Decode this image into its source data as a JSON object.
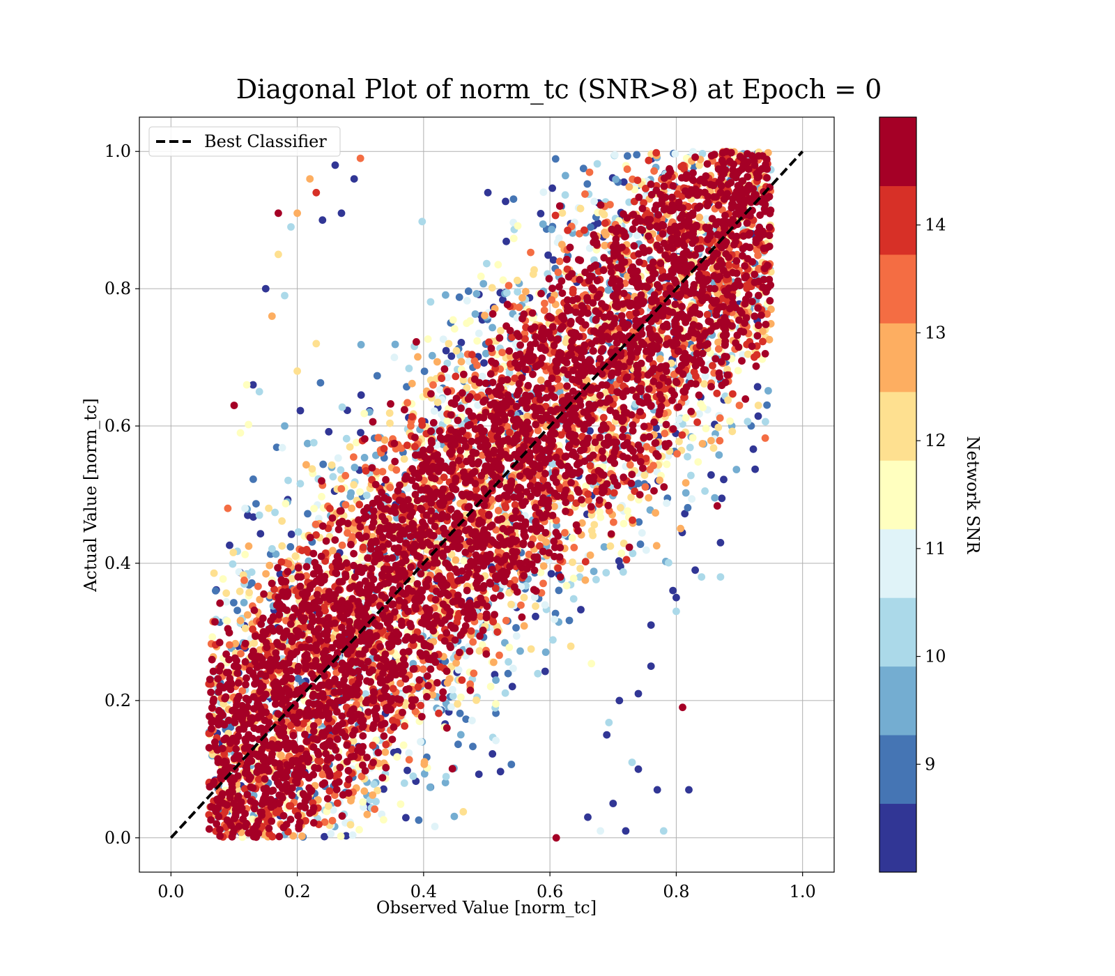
{
  "chart_data": {
    "type": "scatter",
    "title": "Diagonal Plot of norm_tc (SNR>8) at Epoch = 0",
    "xlabel": "Observed Value [norm_tc]",
    "ylabel": "Actual Value [norm_tc]",
    "xlim": [
      -0.05,
      1.05
    ],
    "ylim": [
      -0.05,
      1.05
    ],
    "xticks": [
      0.0,
      0.2,
      0.4,
      0.6,
      0.8,
      1.0
    ],
    "yticks": [
      0.0,
      0.2,
      0.4,
      0.6,
      0.8,
      1.0
    ],
    "xtick_labels": [
      "0.0",
      "0.2",
      "0.4",
      "0.6",
      "0.8",
      "1.0"
    ],
    "ytick_labels": [
      "0.0",
      "0.2",
      "0.4",
      "0.6",
      "0.8",
      "1.0"
    ],
    "grid": true,
    "legend": {
      "position": "upper-left",
      "entries": [
        {
          "label": "Best Classifier",
          "style": "dashed",
          "color": "#000000"
        }
      ]
    },
    "reference_line": {
      "label": "Best Classifier",
      "x": [
        0.0,
        1.0
      ],
      "y": [
        0.0,
        1.0
      ]
    },
    "colorbar": {
      "label": "Network SNR",
      "range": [
        8.0,
        15.0
      ],
      "ticks": [
        9,
        10,
        11,
        12,
        13,
        14
      ],
      "tick_labels": [
        "9",
        "10",
        "11",
        "12",
        "13",
        "14"
      ],
      "colors": [
        "#313695",
        "#4575b4",
        "#74add1",
        "#abd9e9",
        "#e0f3f8",
        "#ffffbf",
        "#fee090",
        "#fdae61",
        "#f46d43",
        "#d73027",
        "#a50026"
      ]
    },
    "scatter_description": {
      "point_color_by": "Network SNR",
      "band_half_width_at_high_snr": 0.22,
      "band_half_width_at_low_snr": 0.45,
      "x_range": [
        0.06,
        0.95
      ],
      "y_range": [
        0.0,
        1.0
      ]
    },
    "points": [
      [
        0.15,
        0.8,
        8.3
      ],
      [
        0.17,
        0.91,
        14.8
      ],
      [
        0.1,
        0.63,
        14.5
      ],
      [
        0.13,
        0.66,
        8.3
      ],
      [
        0.22,
        0.96,
        12.5
      ],
      [
        0.26,
        0.98,
        8.2
      ],
      [
        0.23,
        0.94,
        14.1
      ],
      [
        0.17,
        0.85,
        12.0
      ],
      [
        0.11,
        0.59,
        11.6
      ],
      [
        0.12,
        0.66,
        11.5
      ],
      [
        0.09,
        0.48,
        13.2
      ],
      [
        0.78,
        0.01,
        10.5
      ],
      [
        0.82,
        0.07,
        8.3
      ],
      [
        0.81,
        0.19,
        14.9
      ],
      [
        0.87,
        0.43,
        8.3
      ],
      [
        0.87,
        0.38,
        10.2
      ],
      [
        0.93,
        0.63,
        12.4
      ],
      [
        0.95,
        0.77,
        13.0
      ],
      [
        0.61,
        0.0,
        14.6
      ],
      [
        0.77,
        0.07,
        8.3
      ],
      [
        0.74,
        0.1,
        8.3
      ],
      [
        0.72,
        0.01,
        8.3
      ],
      [
        0.7,
        0.05,
        8.3
      ],
      [
        0.68,
        0.01,
        10.8
      ],
      [
        0.76,
        0.25,
        8.3
      ],
      [
        0.84,
        0.38,
        10.2
      ],
      [
        0.83,
        0.39,
        8.3
      ],
      [
        0.8,
        0.35,
        8.3
      ],
      [
        0.8,
        0.33,
        10.5
      ],
      [
        0.71,
        0.2,
        8.3
      ],
      [
        0.2,
        0.91,
        12.5
      ],
      [
        0.19,
        0.89,
        10.3
      ],
      [
        0.24,
        0.9,
        8.5
      ],
      [
        0.27,
        0.91,
        8.3
      ],
      [
        0.29,
        0.96,
        8.3
      ],
      [
        0.23,
        0.72,
        12.0
      ],
      [
        0.16,
        0.76,
        12.5
      ],
      [
        0.18,
        0.79,
        10.5
      ],
      [
        0.14,
        0.65,
        10.1
      ],
      [
        0.3,
        0.99,
        13.5
      ],
      [
        0.74,
        0.21,
        8.3
      ],
      [
        0.73,
        0.11,
        10.5
      ],
      [
        0.76,
        0.31,
        8.3
      ],
      [
        0.69,
        0.15,
        8.3
      ],
      [
        0.66,
        0.03,
        8.3
      ],
      [
        0.18,
        0.6,
        9.8
      ],
      [
        0.2,
        0.68,
        12.0
      ],
      [
        0.14,
        0.47,
        10.4
      ],
      [
        0.92,
        0.73,
        10.7
      ],
      [
        0.92,
        0.88,
        8.3
      ]
    ]
  }
}
